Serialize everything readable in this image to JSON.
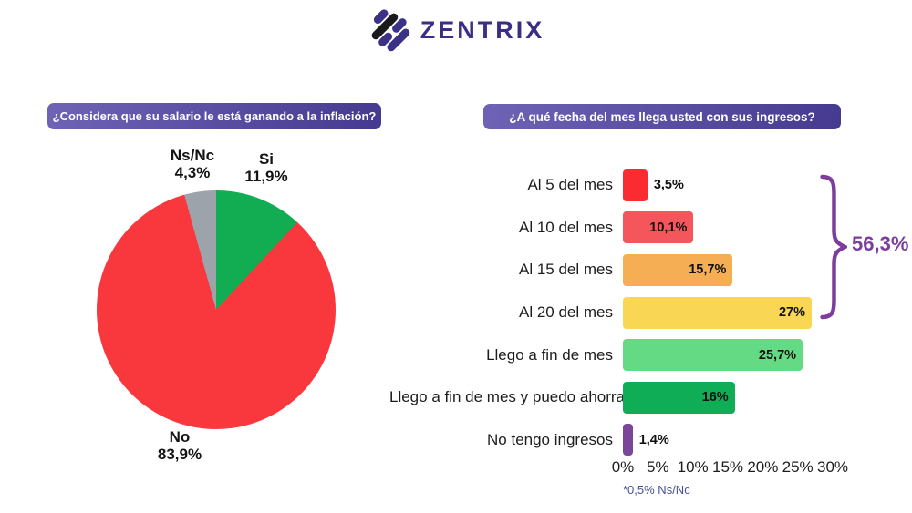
{
  "header": {
    "logo_text": "ZENTRIX"
  },
  "theme": {
    "title_pill_gradient": [
      "#6f63b6",
      "#453a8f"
    ],
    "title_text_color": "#ffffff",
    "logo_purple": "#3b3288",
    "logo_dark": "#1a1a1d",
    "logo_text_color": "#3a2f85"
  },
  "right_panel": {
    "footnote_color": "#474e96"
  },
  "chart_data": [
    {
      "type": "pie",
      "title": "¿Considera que su salario le está ganando a la inflación?",
      "direction": "clockwise",
      "start_angle": "top",
      "slices": [
        {
          "label": "Si",
          "value": 11.9,
          "value_label": "11,9%",
          "color": "#12ad53"
        },
        {
          "label": "No",
          "value": 83.9,
          "value_label": "83,9%",
          "color": "#f8383c"
        },
        {
          "label": "Ns/Nc",
          "value": 4.3,
          "value_label": "4,3%",
          "color": "#9da3ab"
        }
      ]
    },
    {
      "type": "bar",
      "orientation": "horizontal",
      "title": "¿A qué fecha del mes llega usted con sus ingresos?",
      "categories": [
        "Al 5 del mes",
        "Al 10 del mes",
        "Al 15 del mes",
        "Al 20 del mes",
        "Llego a fin de mes",
        "Llego a fin de mes y puedo ahorrar",
        "No tengo ingresos"
      ],
      "values": [
        3.5,
        10.1,
        15.7,
        27,
        25.7,
        16,
        1.4
      ],
      "value_labels": [
        "3,5%",
        "10,1%",
        "15,7%",
        "27%",
        "25,7%",
        "16%",
        "1,4%"
      ],
      "colors": [
        "#fb2b32",
        "#f4565b",
        "#f5ae53",
        "#f9d653",
        "#64da85",
        "#0ead56",
        "#7b4697"
      ],
      "xlim": [
        0,
        30
      ],
      "x_ticks": [
        "0%",
        "5%",
        "10%",
        "15%",
        "20%",
        "25%",
        "30%"
      ],
      "grid": false,
      "annotation": {
        "label": "56,3%",
        "color": "#7c3d9c",
        "covers_categories": [
          "Al 5 del mes",
          "Al 10 del mes",
          "Al 15 del mes",
          "Al 20 del mes"
        ]
      },
      "footnote": "*0,5% Ns/Nc"
    }
  ]
}
